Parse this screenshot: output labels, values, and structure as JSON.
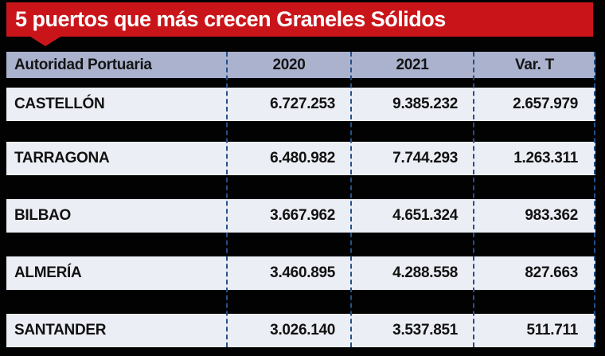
{
  "banner": {
    "title": "5 puertos que más crecen Graneles Sólidos"
  },
  "table": {
    "columns": [
      "Autoridad Portuaria",
      "2020",
      "2021",
      "Var. T"
    ],
    "rows": [
      {
        "port": "CASTELLÓN",
        "y2020": "6.727.253",
        "y2021": "9.385.232",
        "var_t": "2.657.979"
      },
      {
        "port": "TARRAGONA",
        "y2020": "6.480.982",
        "y2021": "7.744.293",
        "var_t": "1.263.311"
      },
      {
        "port": "BILBAO",
        "y2020": "3.667.962",
        "y2021": "4.651.324",
        "var_t": "983.362"
      },
      {
        "port": "ALMERÍA",
        "y2020": "3.460.895",
        "y2021": "4.288.558",
        "var_t": "827.663"
      },
      {
        "port": "SANTANDER",
        "y2020": "3.026.140",
        "y2021": "3.537.851",
        "var_t": "511.711"
      }
    ]
  },
  "chart_data": {
    "type": "table",
    "title": "5 puertos que más crecen Graneles Sólidos",
    "columns": [
      "Autoridad Portuaria",
      "2020",
      "2021",
      "Var. T"
    ],
    "rows": [
      [
        "CASTELLÓN",
        6727253,
        9385232,
        2657979
      ],
      [
        "TARRAGONA",
        6480982,
        7744293,
        1263311
      ],
      [
        "BILBAO",
        3667962,
        4651324,
        983362
      ],
      [
        "ALMERÍA",
        3460895,
        4288558,
        827663
      ],
      [
        "SANTANDER",
        3026140,
        3537851,
        511711
      ]
    ]
  },
  "colors": {
    "banner_red": "#c9151a",
    "header_bg": "#aab2ce",
    "row_bg": "#eceef5",
    "divider_dash": "#24508a",
    "background": "#020202",
    "title_text": "#ffffff",
    "table_text": "#111111"
  }
}
